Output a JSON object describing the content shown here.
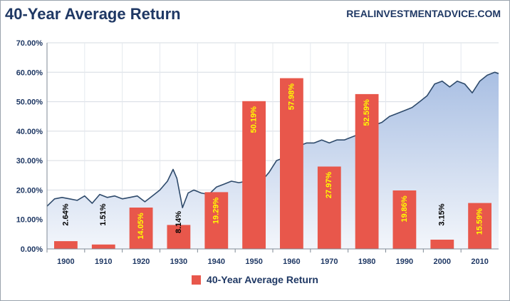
{
  "header": {
    "title": "40-Year Average Return",
    "source": "REALINVESTMENTADVICE.COM"
  },
  "colors": {
    "bar": "#e8574b",
    "bar_label_yellow": "#ffff00",
    "bar_label_dark": "#000000",
    "area_top": "#a9bfe3",
    "area_bottom": "#f3f6fb",
    "line": "#2e4a6b",
    "text": "#1f3864"
  },
  "chart_data": {
    "type": "bar",
    "categories": [
      "1900",
      "1910",
      "1920",
      "1930",
      "1940",
      "1950",
      "1960",
      "1970",
      "1980",
      "1990",
      "2000",
      "2010"
    ],
    "series": [
      {
        "name": "40-Year Average Return",
        "values": [
          2.64,
          1.51,
          14.05,
          8.14,
          19.29,
          50.19,
          57.98,
          27.97,
          52.59,
          19.86,
          3.15,
          15.59
        ],
        "labels": [
          "2.64%",
          "1.51%",
          "14.05%",
          "8.14%",
          "19.29%",
          "50.19%",
          "57.98%",
          "27.97%",
          "52.59%",
          "19.86%",
          "3.15%",
          "15.59%"
        ],
        "label_colors": [
          "dark",
          "dark",
          "yellow",
          "dark",
          "yellow",
          "yellow",
          "yellow",
          "yellow",
          "yellow",
          "yellow",
          "dark",
          "yellow"
        ]
      }
    ],
    "background_area": {
      "x": [
        1895,
        1897,
        1899,
        1901,
        1903,
        1905,
        1907,
        1909,
        1911,
        1913,
        1915,
        1917,
        1919,
        1921,
        1923,
        1925,
        1927,
        1928.5,
        1929.5,
        1931,
        1932.5,
        1934,
        1936,
        1938,
        1940,
        1942,
        1944,
        1946,
        1948,
        1950,
        1952,
        1954,
        1956,
        1958,
        1960,
        1962,
        1964,
        1966,
        1968,
        1970,
        1972,
        1974,
        1976,
        1978,
        1980,
        1982,
        1984,
        1986,
        1988,
        1990,
        1992,
        1994,
        1996,
        1998,
        2000,
        2002,
        2004,
        2006,
        2008,
        2010,
        2012,
        2014,
        2015
      ],
      "y": [
        14.5,
        17,
        17.5,
        17,
        16.5,
        18,
        15.5,
        18.5,
        17.5,
        18,
        17,
        17.5,
        18,
        16,
        18,
        20,
        23,
        27,
        24,
        14,
        19,
        20,
        19,
        18.5,
        21,
        22,
        23,
        22.5,
        23,
        22.5,
        23,
        26,
        30,
        31,
        33,
        35,
        36,
        36,
        37,
        36,
        37,
        37,
        38,
        39,
        41,
        42,
        43,
        45,
        46,
        47,
        48,
        50,
        52,
        56,
        57,
        55,
        57,
        56,
        53,
        57,
        59,
        60,
        59.5
      ]
    },
    "yticks": [
      "0.00%",
      "10.00%",
      "20.00%",
      "30.00%",
      "40.00%",
      "50.00%",
      "60.00%",
      "70.00%"
    ],
    "ylim": [
      0,
      70
    ],
    "grid": true,
    "legend_position": "bottom",
    "title": "40-Year Average Return",
    "xlabel": "",
    "ylabel": ""
  }
}
